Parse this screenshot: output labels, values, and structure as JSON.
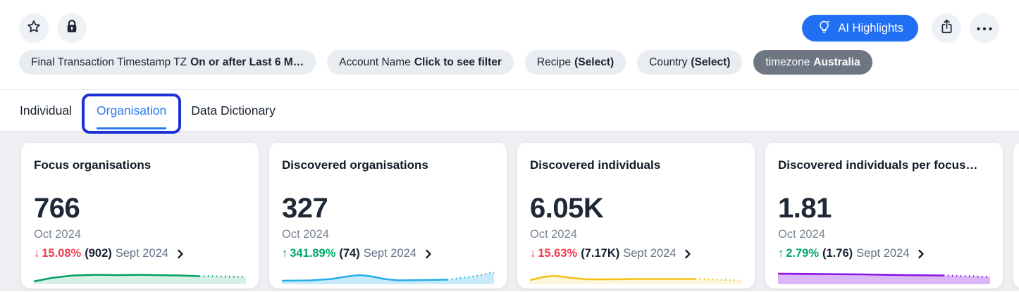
{
  "header": {
    "ai_button_label": "AI Highlights",
    "more_glyph": "•••",
    "icons": {
      "star": "star-outline",
      "lock": "padlock",
      "ai": "lightbulb-sparkle",
      "share": "share-up-arrow",
      "more": "ellipsis"
    }
  },
  "filters": [
    {
      "label": "Final Transaction Timestamp TZ",
      "value": "On or after Last 6 M…",
      "variant": "light"
    },
    {
      "label": "Account Name",
      "value": "Click to see filter",
      "variant": "light"
    },
    {
      "label": "Recipe",
      "value": "(Select)",
      "variant": "light"
    },
    {
      "label": "Country",
      "value": "(Select)",
      "variant": "light"
    },
    {
      "label": "timezone",
      "value": "Australia",
      "variant": "dark"
    }
  ],
  "tabs": [
    {
      "label": "Individual",
      "active": false
    },
    {
      "label": "Organisation",
      "active": true,
      "highlighted": true
    },
    {
      "label": "Data Dictionary",
      "active": false
    }
  ],
  "colors": {
    "accent_blue": "#2170f4",
    "tab_active_blue": "#2b7af0",
    "annotation_box_blue": "#1c2fd6",
    "negative_red": "#f23c50",
    "positive_green": "#00a768",
    "dark_chip_gray": "#6e7683",
    "content_bg": "#edeff3"
  },
  "cards": [
    {
      "title": "Focus organisations",
      "value": "766",
      "period": "Oct 2024",
      "change": {
        "arrow": "↓",
        "direction": "down",
        "percent": "15.08%",
        "previous": "(902)",
        "previous_period": "Sept 2024",
        "style": "color:#f23c50"
      },
      "sparkline": {
        "type": "area",
        "color": "#069f62",
        "fill_opacity": 0.16,
        "solid": [
          [
            0,
            18
          ],
          [
            25,
            13
          ],
          [
            55,
            9.5
          ],
          [
            90,
            8.5
          ],
          [
            120,
            9
          ],
          [
            150,
            8.5
          ],
          [
            175,
            9
          ],
          [
            205,
            9.5
          ],
          [
            234,
            10.5
          ]
        ],
        "dotted": [
          [
            234,
            10.5
          ],
          [
            300,
            11.5
          ]
        ]
      }
    },
    {
      "title": "Discovered organisations",
      "value": "327",
      "period": "Oct 2024",
      "change": {
        "arrow": "↑",
        "direction": "up",
        "percent": "341.89%",
        "previous": "(74)",
        "previous_period": "Sept 2024",
        "style": "color:#00a768"
      },
      "sparkline": {
        "type": "area",
        "color": "#25aee8",
        "fill_opacity": 0.25,
        "solid": [
          [
            0,
            17
          ],
          [
            40,
            16.5
          ],
          [
            70,
            14.5
          ],
          [
            95,
            10.5
          ],
          [
            110,
            9
          ],
          [
            125,
            10.5
          ],
          [
            145,
            14.5
          ],
          [
            165,
            16.5
          ],
          [
            200,
            16
          ],
          [
            234,
            15.5
          ]
        ],
        "dotted": [
          [
            234,
            15.5
          ],
          [
            270,
            11
          ],
          [
            300,
            5
          ]
        ]
      }
    },
    {
      "title": "Discovered individuals",
      "value": "6.05K",
      "period": "Oct 2024",
      "change": {
        "arrow": "↓",
        "direction": "down",
        "percent": "15.63%",
        "previous": "(7.17K)",
        "previous_period": "Sept 2024",
        "style": "color:#f23c50"
      },
      "sparkline": {
        "type": "area",
        "color": "#f5c213",
        "fill_opacity": 0.15,
        "solid": [
          [
            0,
            16
          ],
          [
            20,
            11.5
          ],
          [
            35,
            10
          ],
          [
            55,
            12.5
          ],
          [
            80,
            15
          ],
          [
            110,
            15
          ],
          [
            150,
            14.5
          ],
          [
            190,
            14.5
          ],
          [
            234,
            14.5
          ]
        ],
        "dotted": [
          [
            234,
            14.5
          ],
          [
            300,
            16.5
          ]
        ]
      }
    },
    {
      "title": "Discovered individuals per focus…",
      "value": "1.81",
      "period": "Oct 2024",
      "change": {
        "arrow": "↑",
        "direction": "up",
        "percent": "2.79%",
        "previous": "(1.76)",
        "previous_period": "Sept 2024",
        "style": "color:#00a768"
      },
      "sparkline": {
        "type": "area",
        "color": "#8a12e3",
        "fill_opacity": 0.3,
        "solid": [
          [
            0,
            7
          ],
          [
            60,
            7.5
          ],
          [
            120,
            8
          ],
          [
            180,
            9
          ],
          [
            234,
            9.5
          ]
        ],
        "dotted": [
          [
            234,
            9.5
          ],
          [
            300,
            11.5
          ]
        ]
      }
    }
  ]
}
